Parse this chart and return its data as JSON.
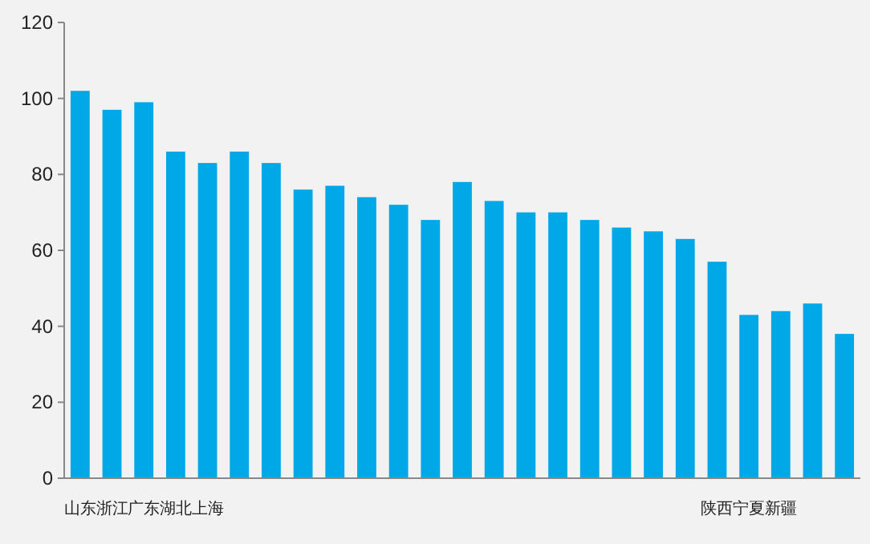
{
  "chart_data": {
    "type": "bar",
    "categories": [
      "山东",
      "浙江",
      "广东",
      "湖北",
      "上海",
      null,
      null,
      null,
      null,
      null,
      null,
      null,
      null,
      null,
      null,
      null,
      null,
      null,
      null,
      null,
      "陕西",
      "宁夏",
      "新疆",
      null,
      null
    ],
    "values": [
      102,
      97,
      99,
      86,
      83,
      86,
      83,
      76,
      77,
      74,
      72,
      68,
      78,
      73,
      70,
      70,
      68,
      66,
      65,
      63,
      57,
      43,
      44,
      46,
      38
    ],
    "color": "#00a8e8",
    "ylim": [
      0,
      120
    ],
    "yticks": [
      0,
      20,
      40,
      60,
      80,
      100,
      120
    ]
  }
}
